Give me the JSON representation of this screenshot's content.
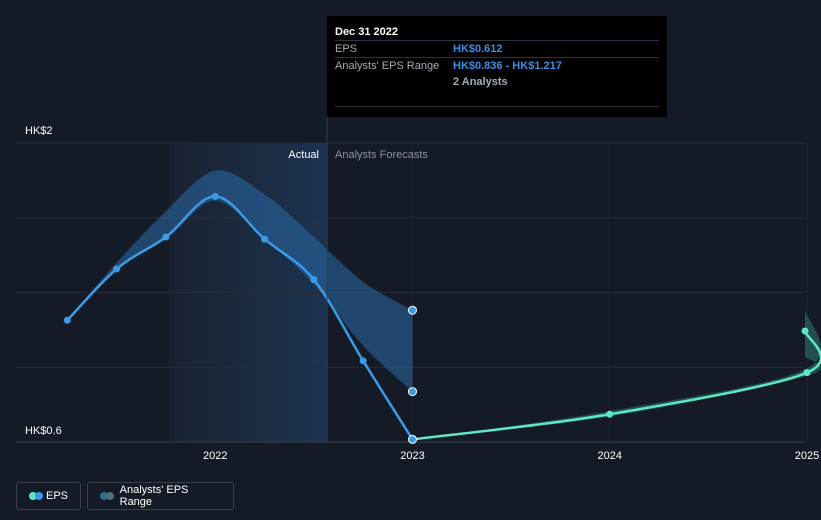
{
  "chart_data": {
    "type": "line",
    "y_axis": {
      "top_label": "HK$2",
      "bottom_label": "HK$0.6",
      "ylim": [
        0.6,
        2.0
      ]
    },
    "x_ticks": [
      {
        "label": "2022",
        "x": 2022.0
      },
      {
        "label": "2023",
        "x": 2023.0
      },
      {
        "label": "2024",
        "x": 2024.0
      },
      {
        "label": "2025",
        "x": 2025.0
      }
    ],
    "xlim": [
      2020.99,
      2024.99
    ],
    "region_labels": {
      "actual": "Actual",
      "forecast": "Analysts Forecasts"
    },
    "series": [
      {
        "name": "EPS",
        "color": "#3a9be8",
        "points": [
          {
            "x": 2021.25,
            "y": 1.17
          },
          {
            "x": 2021.5,
            "y": 1.41
          },
          {
            "x": 2021.75,
            "y": 1.56
          },
          {
            "x": 2022.0,
            "y": 1.75
          },
          {
            "x": 2022.25,
            "y": 1.55
          },
          {
            "x": 2022.5,
            "y": 1.36
          },
          {
            "x": 2022.75,
            "y": 0.98
          },
          {
            "x": 2023.0,
            "y": 0.612
          }
        ],
        "range_band": [
          {
            "x": 2021.25,
            "low": 1.17,
            "high": 1.17
          },
          {
            "x": 2021.5,
            "low": 1.41,
            "high": 1.44
          },
          {
            "x": 2021.75,
            "low": 1.55,
            "high": 1.68
          },
          {
            "x": 2022.0,
            "low": 1.73,
            "high": 1.87
          },
          {
            "x": 2022.25,
            "low": 1.55,
            "high": 1.76
          },
          {
            "x": 2022.5,
            "low": 1.34,
            "high": 1.56
          },
          {
            "x": 2022.75,
            "low": 1.05,
            "high": 1.35
          },
          {
            "x": 2023.0,
            "low": 0.836,
            "high": 1.217
          }
        ]
      },
      {
        "name": "Analysts' Forecast EPS",
        "color": "#5ee6c8",
        "points": [
          {
            "x": 2023.0,
            "y": 0.612
          },
          {
            "x": 2024.0,
            "y": 0.73
          },
          {
            "x": 2025.0,
            "y": 0.925
          },
          {
            "x": 2024.99,
            "y": 1.12
          }
        ],
        "range_band": [
          {
            "x": 2023.0,
            "low": 0.612,
            "high": 0.612
          },
          {
            "x": 2024.0,
            "low": 0.72,
            "high": 0.745
          },
          {
            "x": 2025.0,
            "low": 0.91,
            "high": 0.945
          },
          {
            "x": 2024.99,
            "low": 1.0,
            "high": 1.22
          }
        ]
      }
    ],
    "grid": true
  },
  "tooltip": {
    "date": "Dec 31 2022",
    "rows": [
      {
        "label": "EPS",
        "value": "HK$0.612"
      },
      {
        "label": "Analysts' EPS Range",
        "value": "HK$0.836 - HK$1.217"
      },
      {
        "label": "",
        "value": "2 Analysts"
      }
    ]
  },
  "legend": {
    "eps_label": "EPS",
    "range_label": "Analysts' EPS Range",
    "eps_color": "#3a9be8",
    "forecast_color": "#5ee6c8",
    "range_color": "#2f6f8f"
  }
}
